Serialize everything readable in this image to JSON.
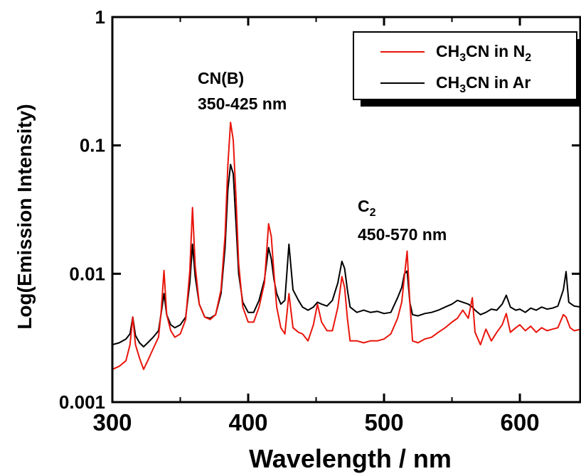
{
  "chart_data": {
    "type": "line",
    "xlabel": "Wavelength / nm",
    "ylabel": "Log(Emission Intensity)",
    "xlim": [
      300,
      645
    ],
    "ylim": [
      0.001,
      1
    ],
    "yscale": "log",
    "x_ticks": [
      300,
      400,
      500,
      600
    ],
    "y_ticks": [
      {
        "value": 0.001,
        "label": "0.001"
      },
      {
        "value": 0.01,
        "label": "0.01"
      },
      {
        "value": 0.1,
        "label": "0.1"
      },
      {
        "value": 1,
        "label": "1"
      }
    ],
    "grid": false,
    "legend_position": "top-right",
    "annotations": [
      {
        "id": "cn-b",
        "lines": [
          "CN(B)",
          "350-425 nm"
        ]
      },
      {
        "id": "c2",
        "lines": [
          "C₂",
          "450-570 nm"
        ]
      }
    ],
    "series": [
      {
        "name": "CH₃CN in N₂",
        "color": "#e8150b",
        "points": [
          [
            300,
            0.0018
          ],
          [
            305,
            0.0019
          ],
          [
            310,
            0.0021
          ],
          [
            313,
            0.0028
          ],
          [
            315,
            0.0046
          ],
          [
            317,
            0.0028
          ],
          [
            320,
            0.0022
          ],
          [
            323,
            0.0018
          ],
          [
            326,
            0.0021
          ],
          [
            330,
            0.0026
          ],
          [
            334,
            0.0032
          ],
          [
            336,
            0.0052
          ],
          [
            338,
            0.0106
          ],
          [
            340,
            0.0048
          ],
          [
            343,
            0.0036
          ],
          [
            346,
            0.0032
          ],
          [
            350,
            0.0034
          ],
          [
            354,
            0.0044
          ],
          [
            357,
            0.0105
          ],
          [
            359,
            0.0328
          ],
          [
            361,
            0.0115
          ],
          [
            364,
            0.0058
          ],
          [
            368,
            0.0046
          ],
          [
            372,
            0.0044
          ],
          [
            376,
            0.0048
          ],
          [
            380,
            0.0075
          ],
          [
            383,
            0.02
          ],
          [
            385,
            0.07
          ],
          [
            387,
            0.151
          ],
          [
            389,
            0.11
          ],
          [
            391,
            0.04
          ],
          [
            393,
            0.012
          ],
          [
            396,
            0.0055
          ],
          [
            400,
            0.0042
          ],
          [
            404,
            0.0042
          ],
          [
            408,
            0.0055
          ],
          [
            412,
            0.0085
          ],
          [
            415,
            0.0245
          ],
          [
            417,
            0.0195
          ],
          [
            419,
            0.01
          ],
          [
            421,
            0.0055
          ],
          [
            424,
            0.0038
          ],
          [
            427,
            0.0034
          ],
          [
            430,
            0.007
          ],
          [
            433,
            0.0038
          ],
          [
            437,
            0.0035
          ],
          [
            440,
            0.0034
          ],
          [
            444,
            0.003
          ],
          [
            448,
            0.004
          ],
          [
            451,
            0.0058
          ],
          [
            454,
            0.0042
          ],
          [
            458,
            0.0036
          ],
          [
            462,
            0.0036
          ],
          [
            466,
            0.0055
          ],
          [
            469,
            0.0095
          ],
          [
            471,
            0.0078
          ],
          [
            473,
            0.0045
          ],
          [
            475,
            0.003
          ],
          [
            480,
            0.003
          ],
          [
            485,
            0.0029
          ],
          [
            490,
            0.003
          ],
          [
            495,
            0.003
          ],
          [
            500,
            0.0031
          ],
          [
            505,
            0.0034
          ],
          [
            510,
            0.0045
          ],
          [
            513,
            0.006
          ],
          [
            515,
            0.0095
          ],
          [
            517,
            0.015
          ],
          [
            519,
            0.006
          ],
          [
            521,
            0.003
          ],
          [
            525,
            0.0029
          ],
          [
            530,
            0.0031
          ],
          [
            535,
            0.0032
          ],
          [
            540,
            0.0035
          ],
          [
            545,
            0.0038
          ],
          [
            550,
            0.0042
          ],
          [
            554,
            0.0045
          ],
          [
            558,
            0.0052
          ],
          [
            562,
            0.0045
          ],
          [
            565,
            0.0065
          ],
          [
            567,
            0.0035
          ],
          [
            571,
            0.0028
          ],
          [
            575,
            0.0037
          ],
          [
            579,
            0.003
          ],
          [
            583,
            0.0035
          ],
          [
            587,
            0.004
          ],
          [
            590,
            0.0049
          ],
          [
            593,
            0.0035
          ],
          [
            597,
            0.0038
          ],
          [
            600,
            0.004
          ],
          [
            604,
            0.0036
          ],
          [
            608,
            0.0039
          ],
          [
            612,
            0.0035
          ],
          [
            616,
            0.0038
          ],
          [
            620,
            0.0036
          ],
          [
            624,
            0.0037
          ],
          [
            628,
            0.0038
          ],
          [
            632,
            0.0048
          ],
          [
            634,
            0.0046
          ],
          [
            637,
            0.0038
          ],
          [
            640,
            0.0036
          ],
          [
            645,
            0.0037
          ]
        ]
      },
      {
        "name": "CH₃CN in Ar",
        "color": "#000000",
        "points": [
          [
            300,
            0.0028
          ],
          [
            305,
            0.0029
          ],
          [
            310,
            0.0031
          ],
          [
            313,
            0.0034
          ],
          [
            315,
            0.0046
          ],
          [
            317,
            0.0033
          ],
          [
            320,
            0.0029
          ],
          [
            323,
            0.0027
          ],
          [
            326,
            0.0029
          ],
          [
            330,
            0.0032
          ],
          [
            334,
            0.0036
          ],
          [
            336,
            0.005
          ],
          [
            338,
            0.007
          ],
          [
            340,
            0.0048
          ],
          [
            343,
            0.004
          ],
          [
            346,
            0.0038
          ],
          [
            350,
            0.004
          ],
          [
            354,
            0.0046
          ],
          [
            357,
            0.0085
          ],
          [
            359,
            0.017
          ],
          [
            361,
            0.0095
          ],
          [
            364,
            0.0058
          ],
          [
            368,
            0.0046
          ],
          [
            372,
            0.0045
          ],
          [
            376,
            0.0048
          ],
          [
            380,
            0.007
          ],
          [
            383,
            0.016
          ],
          [
            385,
            0.045
          ],
          [
            387,
            0.071
          ],
          [
            389,
            0.06
          ],
          [
            391,
            0.025
          ],
          [
            393,
            0.01
          ],
          [
            396,
            0.006
          ],
          [
            400,
            0.005
          ],
          [
            404,
            0.005
          ],
          [
            408,
            0.0062
          ],
          [
            412,
            0.009
          ],
          [
            415,
            0.016
          ],
          [
            417,
            0.013
          ],
          [
            419,
            0.009
          ],
          [
            421,
            0.007
          ],
          [
            424,
            0.0058
          ],
          [
            427,
            0.0062
          ],
          [
            430,
            0.017
          ],
          [
            433,
            0.0075
          ],
          [
            437,
            0.0062
          ],
          [
            440,
            0.0055
          ],
          [
            444,
            0.0052
          ],
          [
            448,
            0.0055
          ],
          [
            451,
            0.006
          ],
          [
            454,
            0.0058
          ],
          [
            458,
            0.0056
          ],
          [
            462,
            0.0062
          ],
          [
            466,
            0.0085
          ],
          [
            469,
            0.0125
          ],
          [
            471,
            0.011
          ],
          [
            473,
            0.0075
          ],
          [
            475,
            0.0055
          ],
          [
            480,
            0.005
          ],
          [
            485,
            0.0052
          ],
          [
            490,
            0.005
          ],
          [
            495,
            0.0051
          ],
          [
            500,
            0.0049
          ],
          [
            505,
            0.005
          ],
          [
            510,
            0.0065
          ],
          [
            513,
            0.0078
          ],
          [
            515,
            0.01
          ],
          [
            517,
            0.0105
          ],
          [
            519,
            0.006
          ],
          [
            521,
            0.0048
          ],
          [
            525,
            0.0047
          ],
          [
            530,
            0.0049
          ],
          [
            535,
            0.005
          ],
          [
            540,
            0.0052
          ],
          [
            545,
            0.0055
          ],
          [
            550,
            0.0058
          ],
          [
            554,
            0.0062
          ],
          [
            558,
            0.006
          ],
          [
            562,
            0.0058
          ],
          [
            565,
            0.0055
          ],
          [
            567,
            0.0052
          ],
          [
            571,
            0.0048
          ],
          [
            575,
            0.005
          ],
          [
            579,
            0.0053
          ],
          [
            583,
            0.0052
          ],
          [
            587,
            0.0058
          ],
          [
            590,
            0.0068
          ],
          [
            593,
            0.0055
          ],
          [
            597,
            0.0052
          ],
          [
            600,
            0.0053
          ],
          [
            604,
            0.005
          ],
          [
            608,
            0.0054
          ],
          [
            612,
            0.0052
          ],
          [
            616,
            0.0055
          ],
          [
            620,
            0.0053
          ],
          [
            624,
            0.0054
          ],
          [
            628,
            0.0056
          ],
          [
            632,
            0.0075
          ],
          [
            634,
            0.0104
          ],
          [
            636,
            0.006
          ],
          [
            640,
            0.0056
          ],
          [
            645,
            0.0055
          ]
        ]
      }
    ]
  }
}
